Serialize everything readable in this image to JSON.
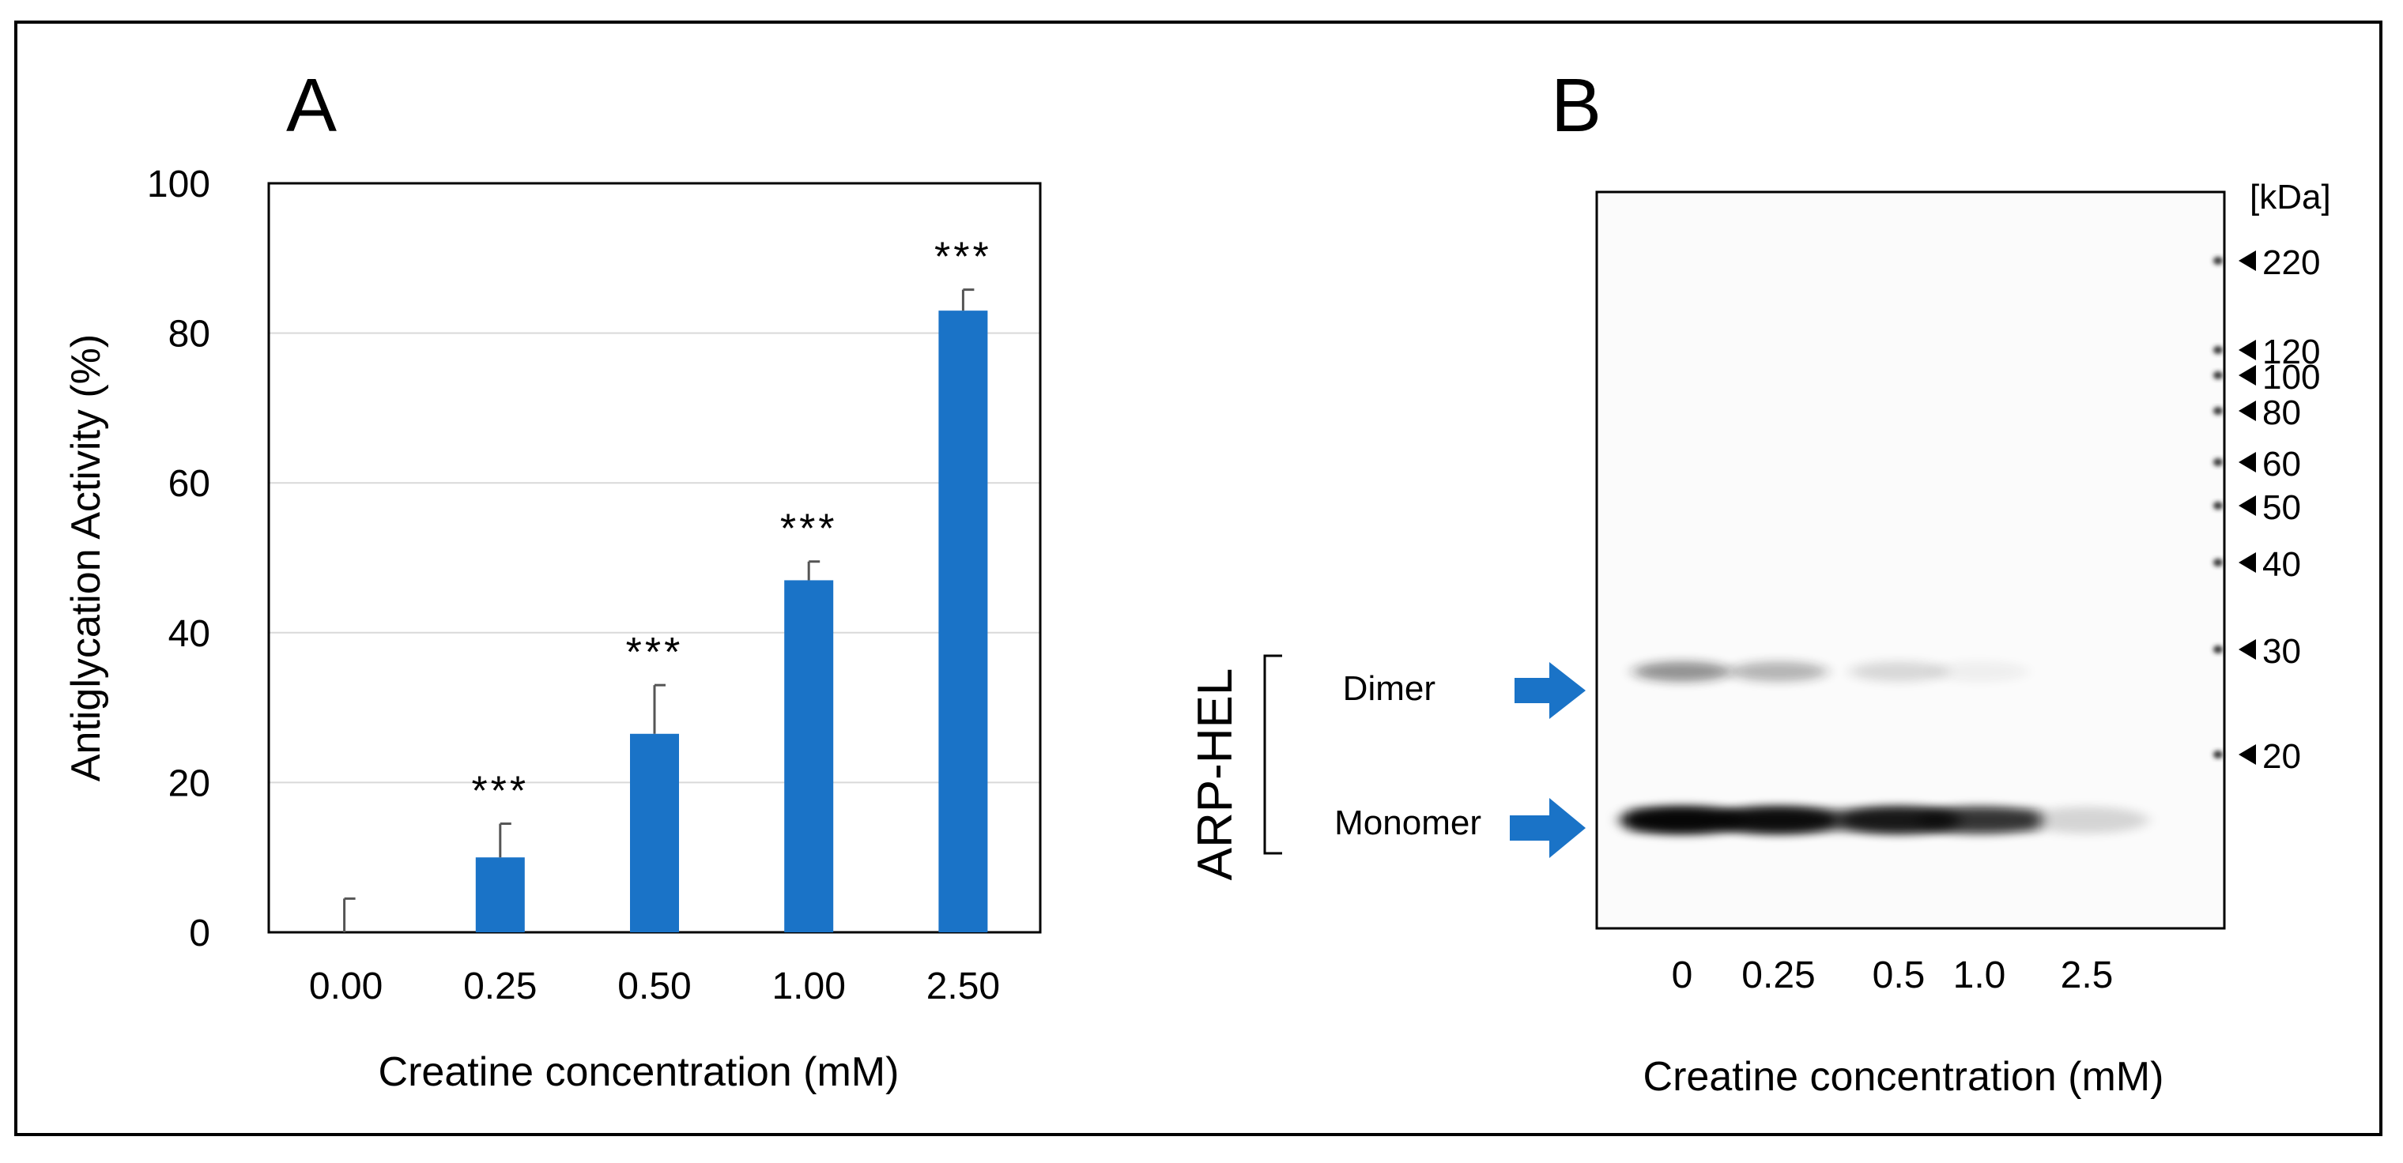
{
  "panel_a_label": "A",
  "panel_b_label": "B",
  "chart_data": [
    {
      "type": "bar",
      "title": "",
      "categories": [
        "0.00",
        "0.25",
        "0.50",
        "1.00",
        "2.50"
      ],
      "values": [
        0,
        10,
        26.5,
        47,
        83
      ],
      "error": [
        4.5,
        4.5,
        6.5,
        2.5,
        2.8
      ],
      "significance": [
        "",
        "***",
        "***",
        "***",
        "***"
      ],
      "xlabel": "Creatine concentration (mM)",
      "ylabel": "Antiglycation Activity (%)",
      "ylim": [
        0,
        100
      ],
      "yticks": [
        "0",
        "20",
        "40",
        "60",
        "80",
        "100"
      ],
      "grid": true,
      "color": "#1a73c7"
    },
    {
      "type": "other",
      "description_visible_text": "western blot",
      "lanes": [
        "0",
        "0.25",
        "0.5",
        "1.0",
        "2.5"
      ],
      "dimer_intensity": [
        0.45,
        0.3,
        0.15,
        0.05,
        0.0
      ],
      "monomer_intensity": [
        1.0,
        0.95,
        0.85,
        0.6,
        0.15
      ],
      "xlabel": "Creatine concentration (mM)",
      "kda_unit": "[kDa]",
      "markers": [
        "220",
        "120",
        "100",
        "80",
        "60",
        "50",
        "40",
        "30",
        "20"
      ],
      "bands": {
        "dimer": "Dimer",
        "monomer": "Monomer"
      },
      "group_label": "ARP-HEL",
      "arrow_color": "#1a73c7"
    }
  ]
}
